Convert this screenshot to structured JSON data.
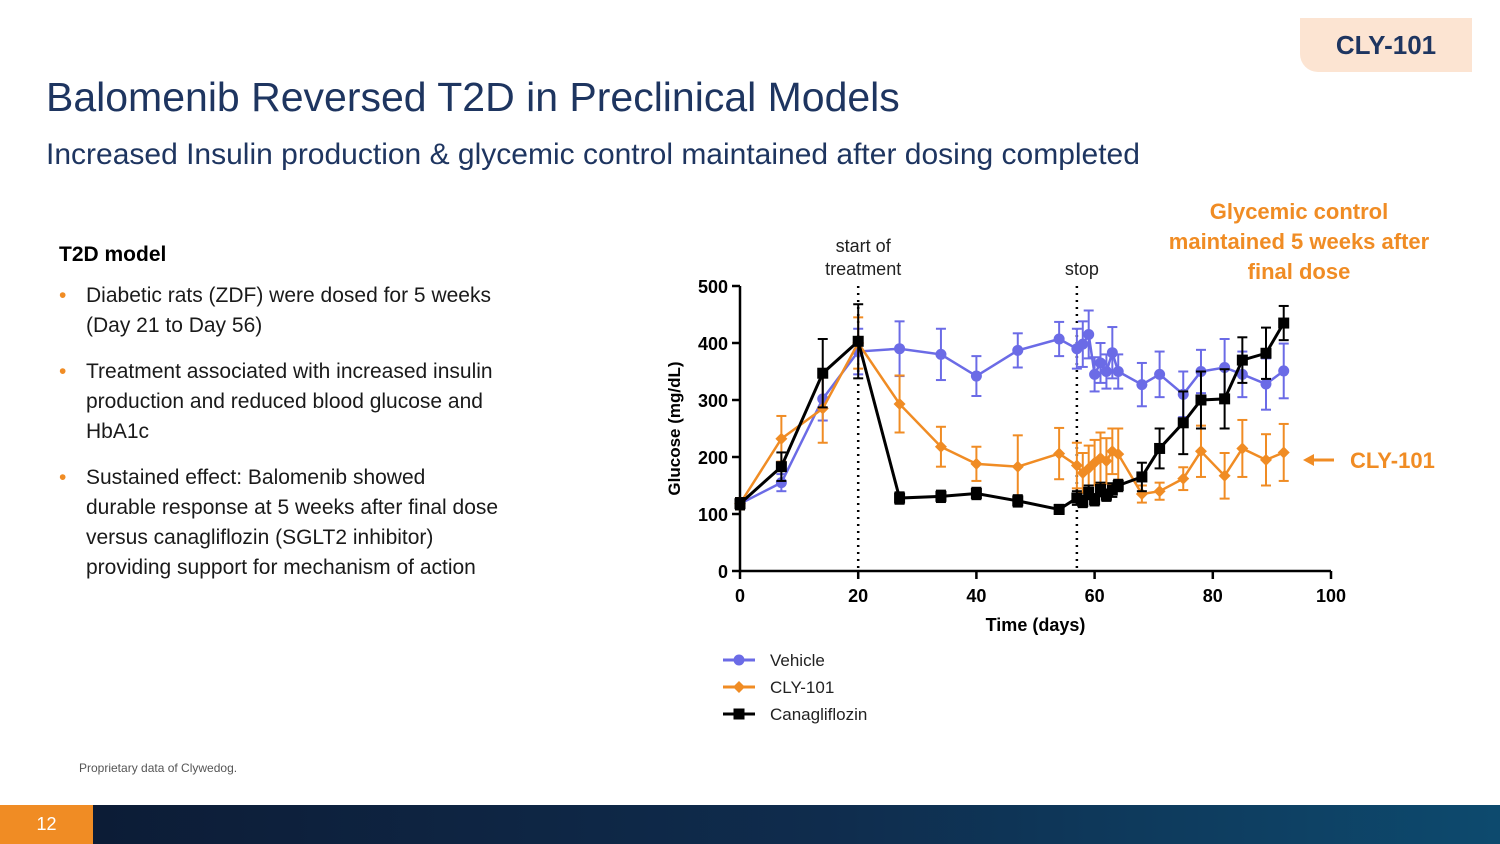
{
  "badge": "CLY-101",
  "title": "Balomenib Reversed T2D in Preclinical Models",
  "subtitle": "Increased Insulin production & glycemic control maintained after dosing completed",
  "left_panel": {
    "heading": "T2D model",
    "bullet_marker": "•",
    "bullets": [
      "Diabetic rats (ZDF) were dosed for 5 weeks (Day 21 to Day 56)",
      "Treatment associated with increased insulin production and reduced blood glucose and HbA1c",
      "Sustained effect:  Balomenib showed durable response at 5 weeks after final dose versus canagliflozin (SGLT2 inhibitor) providing support for mechanism of action"
    ]
  },
  "footnote": "Proprietary data of Clywedog.",
  "page_number": "12",
  "colors": {
    "title": "#1e3560",
    "accent_orange": "#f08c24",
    "vehicle": "#6b6be6",
    "cly101": "#f08c24",
    "canagliflozin": "#000000"
  },
  "chart_data": {
    "type": "line",
    "xlabel": "Time (days)",
    "ylabel": "Glucose (mg/dL)",
    "xlim": [
      0,
      100
    ],
    "ylim": [
      0,
      500
    ],
    "xticks": [
      0,
      20,
      40,
      60,
      80,
      100
    ],
    "yticks": [
      0,
      100,
      200,
      300,
      400,
      500
    ],
    "grid": false,
    "legend_position": "bottom-left",
    "vlines": [
      {
        "x": 20,
        "label_lines": [
          "start of",
          "treatment"
        ]
      },
      {
        "x": 57,
        "label_lines": [
          "stop"
        ]
      }
    ],
    "callout": {
      "lines": [
        "Glycemic control",
        "maintained 5 weeks after",
        "final dose"
      ],
      "arrow_label": "CLY-101"
    },
    "series": [
      {
        "name": "Vehicle",
        "marker": "circle",
        "x": [
          0,
          7,
          14,
          20,
          27,
          34,
          40,
          47,
          54,
          57,
          58,
          59,
          60,
          61,
          62,
          63,
          64,
          68,
          71,
          75,
          78,
          82,
          85,
          89,
          92
        ],
        "y": [
          118,
          155,
          302,
          385,
          390,
          380,
          342,
          387,
          407,
          390,
          398,
          415,
          345,
          365,
          350,
          383,
          350,
          327,
          345,
          310,
          350,
          357,
          345,
          328,
          351
        ],
        "err": [
          10,
          15,
          38,
          40,
          48,
          45,
          35,
          30,
          30,
          35,
          40,
          42,
          30,
          35,
          30,
          45,
          30,
          38,
          40,
          40,
          38,
          50,
          40,
          45,
          48
        ]
      },
      {
        "name": "CLY-101",
        "marker": "diamond",
        "x": [
          0,
          7,
          14,
          20,
          27,
          34,
          40,
          47,
          54,
          57,
          58,
          59,
          60,
          61,
          62,
          63,
          64,
          68,
          71,
          75,
          78,
          82,
          85,
          89,
          92
        ],
        "y": [
          118,
          232,
          285,
          400,
          293,
          218,
          188,
          183,
          206,
          185,
          172,
          180,
          190,
          198,
          193,
          210,
          205,
          135,
          140,
          162,
          210,
          167,
          215,
          195,
          208
        ],
        "err": [
          10,
          40,
          60,
          45,
          50,
          35,
          30,
          55,
          45,
          40,
          35,
          40,
          40,
          45,
          40,
          40,
          45,
          15,
          15,
          20,
          45,
          40,
          50,
          45,
          50
        ]
      },
      {
        "name": "Canagliflozin",
        "marker": "square",
        "x": [
          0,
          7,
          14,
          20,
          27,
          34,
          40,
          47,
          54,
          57,
          58,
          59,
          60,
          61,
          62,
          63,
          64,
          68,
          71,
          75,
          78,
          82,
          85,
          89,
          92
        ],
        "y": [
          118,
          183,
          347,
          403,
          128,
          131,
          136,
          123,
          108,
          128,
          122,
          138,
          125,
          143,
          133,
          142,
          150,
          165,
          215,
          260,
          300,
          302,
          370,
          382,
          435
        ],
        "err": [
          10,
          25,
          60,
          65,
          10,
          10,
          10,
          10,
          8,
          12,
          10,
          12,
          10,
          12,
          10,
          12,
          10,
          25,
          35,
          55,
          50,
          52,
          40,
          45,
          30
        ]
      }
    ]
  }
}
